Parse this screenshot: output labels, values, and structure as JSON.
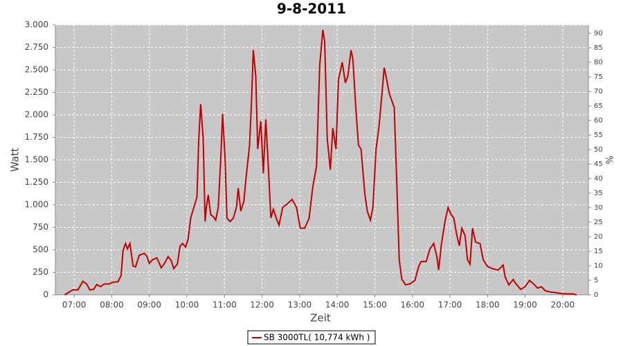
{
  "chart_data": {
    "type": "line",
    "title": "9-8-2011",
    "xlabel": "Zeit",
    "ylabel": "Watt",
    "y2label": "%",
    "x": [
      "06:45",
      "06:52",
      "06:58",
      "07:06",
      "07:14",
      "07:20",
      "07:25",
      "07:31",
      "07:36",
      "07:42",
      "07:48",
      "07:56",
      "08:02",
      "08:10",
      "08:15",
      "08:18",
      "08:22",
      "08:25",
      "08:29",
      "08:34",
      "08:38",
      "08:44",
      "08:52",
      "08:56",
      "09:00",
      "09:05",
      "09:12",
      "09:16",
      "09:19",
      "09:24",
      "09:30",
      "09:35",
      "09:39",
      "09:45",
      "09:49",
      "09:53",
      "09:58",
      "10:02",
      "10:06",
      "10:11",
      "10:16",
      "10:19",
      "10:22",
      "10:26",
      "10:29",
      "10:31",
      "10:34",
      "10:38",
      "10:42",
      "10:46",
      "10:50",
      "10:54",
      "10:57",
      "11:01",
      "11:04",
      "11:09",
      "11:14",
      "11:19",
      "11:22",
      "11:26",
      "11:31",
      "11:34",
      "11:40",
      "11:43",
      "11:46",
      "11:50",
      "11:53",
      "11:58",
      "12:02",
      "12:06",
      "12:10",
      "12:14",
      "12:18",
      "12:23",
      "12:27",
      "12:33",
      "12:40",
      "12:48",
      "12:55",
      "13:01",
      "13:08",
      "13:15",
      "13:21",
      "13:27",
      "13:32",
      "13:37",
      "13:40",
      "13:44",
      "13:49",
      "13:53",
      "13:58",
      "14:02",
      "14:08",
      "14:13",
      "14:17",
      "14:22",
      "14:25",
      "14:30",
      "14:34",
      "14:38",
      "14:44",
      "14:48",
      "14:53",
      "14:57",
      "15:02",
      "15:07",
      "15:12",
      "15:15",
      "15:18",
      "15:23",
      "15:27",
      "15:31",
      "15:35",
      "15:39",
      "15:43",
      "15:49",
      "15:57",
      "16:04",
      "16:10",
      "16:14",
      "16:22",
      "16:28",
      "16:34",
      "16:39",
      "16:42",
      "16:46",
      "16:52",
      "16:57",
      "17:02",
      "17:06",
      "17:11",
      "17:15",
      "17:19",
      "17:24",
      "17:28",
      "17:32",
      "17:36",
      "17:41",
      "17:48",
      "17:53",
      "18:00",
      "18:08",
      "18:17",
      "18:25",
      "18:28",
      "18:34",
      "18:41",
      "18:45",
      "18:53",
      "19:00",
      "19:07",
      "19:13",
      "19:20",
      "19:26",
      "19:32",
      "19:41",
      "19:48",
      "19:57",
      "20:08",
      "20:17",
      "20:22"
    ],
    "series": [
      {
        "name": "SB 3000TL( 10,774 kWh )",
        "color": "#c00000",
        "values": [
          0,
          30,
          55,
          55,
          150,
          120,
          55,
          60,
          115,
          90,
          120,
          120,
          140,
          145,
          215,
          490,
          570,
          510,
          570,
          320,
          310,
          440,
          460,
          430,
          350,
          390,
          410,
          350,
          300,
          345,
          425,
          380,
          290,
          345,
          540,
          570,
          530,
          620,
          850,
          970,
          1085,
          1740,
          2120,
          1740,
          815,
          970,
          1110,
          890,
          870,
          830,
          970,
          1510,
          2010,
          1510,
          850,
          815,
          850,
          970,
          1185,
          930,
          1045,
          1275,
          1660,
          2120,
          2720,
          2430,
          1620,
          1930,
          1350,
          1950,
          1430,
          855,
          950,
          845,
          775,
          970,
          1010,
          1060,
          970,
          740,
          740,
          850,
          1200,
          1430,
          2545,
          2945,
          2815,
          1740,
          1390,
          1855,
          1620,
          2390,
          2585,
          2355,
          2430,
          2720,
          2620,
          2045,
          1660,
          1620,
          1125,
          930,
          830,
          970,
          1620,
          1890,
          2280,
          2525,
          2430,
          2240,
          2160,
          2085,
          1275,
          390,
          175,
          110,
          125,
          160,
          315,
          370,
          370,
          510,
          570,
          430,
          275,
          545,
          815,
          970,
          890,
          855,
          660,
          545,
          740,
          660,
          390,
          340,
          740,
          585,
          570,
          390,
          315,
          290,
          275,
          330,
          200,
          110,
          170,
          125,
          60,
          90,
          160,
          125,
          75,
          90,
          45,
          30,
          25,
          15,
          10,
          10,
          0
        ]
      }
    ],
    "xlim": [
      "06:30",
      "20:41"
    ],
    "xticks": [
      "07:00",
      "08:00",
      "09:00",
      "10:00",
      "11:00",
      "12:00",
      "13:00",
      "14:00",
      "15:00",
      "16:00",
      "17:00",
      "18:00",
      "19:00",
      "20:00"
    ],
    "ylim": [
      0,
      3000
    ],
    "yticks": [
      0,
      250,
      500,
      750,
      {
        "value": 1000,
        "label": "1.000"
      },
      {
        "value": 1250,
        "label": "1.250"
      },
      {
        "value": 1500,
        "label": "1.500"
      },
      {
        "value": 1750,
        "label": "1.750"
      },
      {
        "value": 2000,
        "label": "2.000"
      },
      {
        "value": 2250,
        "label": "2.250"
      },
      {
        "value": 2500,
        "label": "2.500"
      },
      {
        "value": 2750,
        "label": "2.750"
      },
      {
        "value": 3000,
        "label": "3.000"
      }
    ],
    "y2lim": [
      0,
      92.9
    ],
    "y2ticks": [
      0,
      5,
      10,
      15,
      20,
      25,
      30,
      35,
      40,
      45,
      50,
      55,
      60,
      65,
      70,
      75,
      80,
      85,
      90
    ],
    "grid": true,
    "legend": "bottom"
  }
}
